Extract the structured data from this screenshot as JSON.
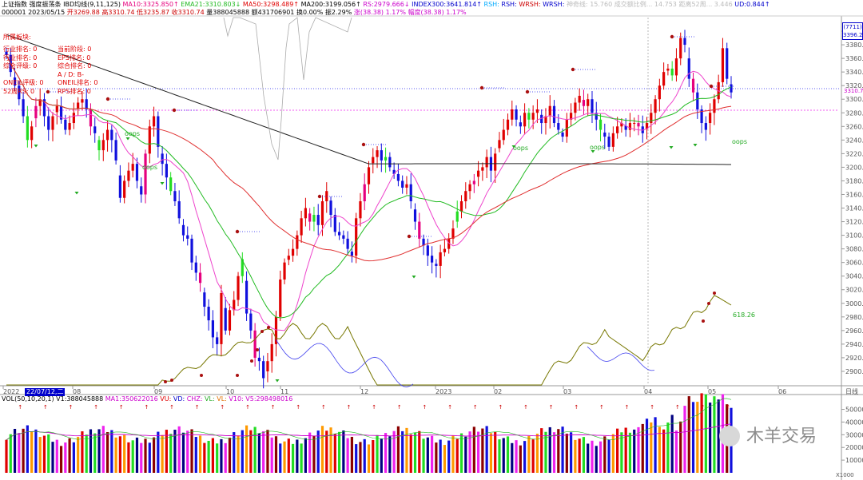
{
  "header": {
    "row1": [
      {
        "text": "上证指数",
        "color": "#000000"
      },
      {
        "text": "强度振荡条",
        "color": "#000000"
      },
      {
        "text": "IBD均线(9,11,125)",
        "color": "#000000"
      },
      {
        "text": "MA10:3325.850↑",
        "color": "#e6007e"
      },
      {
        "text": "EMA21:3310.803↓",
        "color": "#22bb22"
      },
      {
        "text": "MA50:3298.489↑",
        "color": "#e00000"
      },
      {
        "text": "MA200:3199.056↑",
        "color": "#000000"
      },
      {
        "text": "RS:2979.666↓",
        "color": "#cc00cc"
      },
      {
        "text": "INDEX300:3641.814↑",
        "color": "#0000cc"
      },
      {
        "text": "RSH:",
        "color": "#00aaff"
      },
      {
        "text": "RSH:",
        "color": "#0000cc"
      },
      {
        "text": "WRSH:",
        "color": "#cc0000"
      },
      {
        "text": "WRSH:",
        "color": "#0000cc"
      },
      {
        "text": "神奇线:",
        "color": "#bbbbbb"
      },
      {
        "text": "15.760 成交额比例...",
        "color": "#bbbbbb"
      },
      {
        "text": "14.753 距离52周...",
        "color": "#bbbbbb"
      },
      {
        "text": "3.446",
        "color": "#bbbbbb"
      },
      {
        "text": "UD:0.844↑",
        "color": "#0000cc"
      }
    ],
    "row2": [
      {
        "text": "000001 2023/05/15",
        "color": "#000000"
      },
      {
        "text": "开3269.88",
        "color": "#cc0000"
      },
      {
        "text": "高3310.74",
        "color": "#cc0000"
      },
      {
        "text": "低3235.87",
        "color": "#cc0000"
      },
      {
        "text": "收3310.74",
        "color": "#cc0000"
      },
      {
        "text": "量388045888",
        "color": "#000000"
      },
      {
        "text": "额431706901",
        "color": "#000000"
      },
      {
        "text": "换0.00%",
        "color": "#000000"
      },
      {
        "text": "振2.29%",
        "color": "#000000"
      },
      {
        "text": "涨(38.38)",
        "color": "#cc00cc"
      },
      {
        "text": "1.17%",
        "color": "#cc00cc"
      },
      {
        "text": "幅度(38.38)",
        "color": "#cc00cc"
      },
      {
        "text": "1.17%",
        "color": "#cc00cc"
      }
    ]
  },
  "info_panel": {
    "title": "所属板块:",
    "rows": [
      {
        "left": "行业排名: 0",
        "right": "当前阶段: 0"
      },
      {
        "left": "行业排名: 0",
        "right": "EPS排名: 0"
      },
      {
        "left": "综合评级: 0",
        "right": "综合排名: 0"
      },
      {
        "left": "",
        "right": "A / D: B-"
      },
      {
        "left": "ONEIL评级: 0",
        "right": "ONEIL排名: 0"
      },
      {
        "left": "52周RS: 0",
        "right": "RPS排名: 0"
      }
    ]
  },
  "price_box": {
    "label": "(7711)",
    "value": "3396.23"
  },
  "last_price_tag": "3310.7",
  "oops_labels": [
    "oops",
    "oops",
    "oops",
    "oops",
    "oops"
  ],
  "rs_value_label": "618.26",
  "time_axis": [
    "2022",
    "22/07/12,二",
    "08",
    "09",
    "10",
    "11",
    "12",
    "2023",
    "02",
    "03",
    "04",
    "05",
    "06"
  ],
  "time_axis_right": "日线",
  "volume_header": {
    "text1": "VOL(50,10,20,1)",
    "text2": "V1:388045888",
    "text3": "MA1:350622016",
    "text4": "VU:",
    "text5": "VD:",
    "text6": "CHZ:",
    "text7": "VL:",
    "text8": "VL:",
    "text9": "V10:",
    "text10": "V5:298498016"
  },
  "volume_axis": [
    "500000",
    "400000",
    "300000",
    "200000",
    "100000"
  ],
  "volume_unit": "X1000",
  "watermark": "木羊交易",
  "colors": {
    "up": "#e00000",
    "down": "#1010dd",
    "pink": "#e6007e",
    "green_up": "#22dd22",
    "ma10": "#ee44cc",
    "ema21": "#22bb22",
    "ma50": "#e03030",
    "ma200": "#222222",
    "rs": "#777700",
    "index300": "#4040ee",
    "grey": "#aaaaaa"
  },
  "chart_data": {
    "type": "candlestick",
    "title": "上证指数",
    "price_axis": {
      "ticks": [
        3400,
        3380,
        3360,
        3340,
        3320,
        3300,
        3280,
        3260,
        3240,
        3220,
        3200,
        3180,
        3160,
        3140,
        3120,
        3100,
        3080,
        3060,
        3040,
        3020,
        3000,
        2980,
        2960,
        2940,
        2920,
        2900
      ],
      "range": [
        2880,
        3420
      ]
    },
    "volume_axis": {
      "ticks": [
        500000,
        400000,
        300000,
        200000,
        100000
      ],
      "unit": "X1000"
    },
    "close_series": [
      3365,
      3340,
      3320,
      3300,
      3275,
      3240,
      3260,
      3290,
      3300,
      3275,
      3255,
      3275,
      3290,
      3270,
      3255,
      3265,
      3280,
      3295,
      3300,
      3285,
      3260,
      3250,
      3225,
      3240,
      3255,
      3240,
      3210,
      3155,
      3180,
      3195,
      3205,
      3180,
      3160,
      3220,
      3260,
      3275,
      3230,
      3205,
      3185,
      3165,
      3150,
      3125,
      3100,
      3095,
      3060,
      3045,
      3030,
      2995,
      2975,
      2950,
      2940,
      3015,
      2960,
      2990,
      3005,
      3040,
      3065,
      2985,
      2960,
      2920,
      2915,
      2890,
      2915,
      2940,
      2980,
      3035,
      3060,
      3070,
      3080,
      3100,
      3125,
      3140,
      3120,
      3130,
      3115,
      3150,
      3165,
      3130,
      3105,
      3100,
      3095,
      3080,
      3070,
      3125,
      3150,
      3175,
      3200,
      3215,
      3225,
      3210,
      3215,
      3200,
      3190,
      3180,
      3170,
      3175,
      3150,
      3120,
      3095,
      3085,
      3070,
      3060,
      3055,
      3075,
      3080,
      3095,
      3110,
      3135,
      3150,
      3165,
      3175,
      3180,
      3195,
      3200,
      3215,
      3195,
      3220,
      3240,
      3255,
      3270,
      3285,
      3270,
      3260,
      3280,
      3270,
      3280,
      3285,
      3265,
      3275,
      3290,
      3265,
      3255,
      3245,
      3270,
      3280,
      3295,
      3305,
      3290,
      3300,
      3280,
      3270,
      3255,
      3245,
      3230,
      3250,
      3260,
      3265,
      3255,
      3265,
      3265,
      3260,
      3250,
      3265,
      3280,
      3300,
      3320,
      3340,
      3345,
      3335,
      3360,
      3390,
      3380,
      3330,
      3310,
      3285,
      3265,
      3255,
      3280,
      3300,
      3325,
      3375,
      3330,
      3310
    ]
  }
}
